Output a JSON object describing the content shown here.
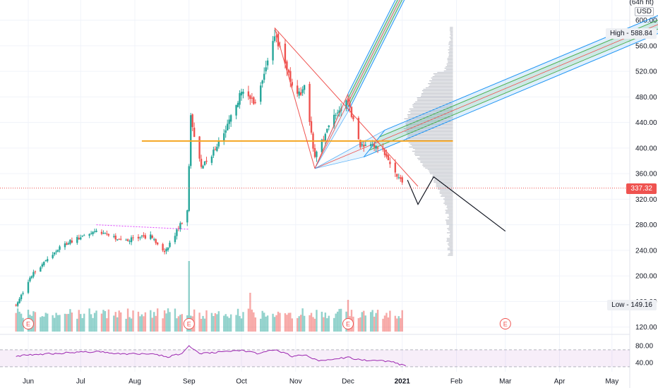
{
  "header": {
    "interval": "(64h ht)",
    "currency": "USD"
  },
  "price_tags": {
    "last": "337.32",
    "high": "High - 588.84",
    "low": "Low - 149.16"
  },
  "colors": {
    "up": "#26a69a",
    "down": "#ef5350",
    "hline": "#f5a623",
    "fork_fill": "#2196f3",
    "fork_mid": "#4caf50",
    "rsi": "#9c27b0"
  },
  "chart_data": {
    "type": "candlestick",
    "x_labels": [
      "Jun",
      "Jul",
      "Aug",
      "Sep",
      "Oct",
      "Nov",
      "Dec",
      "2021",
      "Feb",
      "Mar",
      "Apr",
      "May"
    ],
    "x_label_dates": [
      "2020-06-01",
      "2020-07-01",
      "2020-08-01",
      "2020-09-01",
      "2020-10-01",
      "2020-11-01",
      "2020-12-01",
      "2021-01-01",
      "2021-02-01",
      "2021-03-01",
      "2021-04-01",
      "2021-05-01"
    ],
    "price_axis": {
      "ticks": [
        600,
        560,
        520,
        480,
        440,
        400,
        360,
        320,
        280,
        240,
        200,
        160,
        120
      ],
      "tick_labels": [
        "600.00",
        "560.00",
        "520.00",
        "480.00",
        "440.00",
        "400.00",
        "360.00",
        "320.00",
        "280.00",
        "240.00",
        "200.00",
        "160.00",
        "120.00"
      ],
      "range": [
        113,
        626
      ]
    },
    "rsi_axis": {
      "ticks": [
        80,
        40
      ],
      "tick_labels": [
        "80.00",
        "40.00"
      ],
      "band": [
        30,
        70
      ],
      "range": [
        18,
        100
      ]
    },
    "last_price": 337.32,
    "high": 588.84,
    "low": 149.16,
    "earnings_markers": [
      "2020-06-01",
      "2020-09-01",
      "2020-12-01",
      "2021-03-01"
    ],
    "earnings_label": "E",
    "segments": [
      {
        "from": "2020-05-25",
        "to": "2020-06-04",
        "start": 155,
        "end": 205
      },
      {
        "from": "2020-06-04",
        "to": "2020-06-20",
        "start": 205,
        "end": 248
      },
      {
        "from": "2020-06-20",
        "to": "2020-07-10",
        "start": 248,
        "end": 270
      },
      {
        "from": "2020-07-10",
        "to": "2020-07-25",
        "start": 270,
        "end": 255
      },
      {
        "from": "2020-07-25",
        "to": "2020-08-10",
        "start": 255,
        "end": 262
      },
      {
        "from": "2020-08-10",
        "to": "2020-08-18",
        "start": 262,
        "end": 236
      },
      {
        "from": "2020-08-18",
        "to": "2020-08-31",
        "start": 236,
        "end": 300
      },
      {
        "from": "2020-08-31",
        "to": "2020-09-02",
        "start": 300,
        "end": 448
      },
      {
        "from": "2020-09-02",
        "to": "2020-09-08",
        "start": 448,
        "end": 368
      },
      {
        "from": "2020-09-08",
        "to": "2020-09-20",
        "start": 368,
        "end": 415
      },
      {
        "from": "2020-09-20",
        "to": "2020-10-01",
        "start": 415,
        "end": 488
      },
      {
        "from": "2020-10-01",
        "to": "2020-10-10",
        "start": 488,
        "end": 470
      },
      {
        "from": "2020-10-10",
        "to": "2020-10-20",
        "start": 470,
        "end": 580
      },
      {
        "from": "2020-10-20",
        "to": "2020-10-28",
        "start": 580,
        "end": 520
      },
      {
        "from": "2020-10-28",
        "to": "2020-11-01",
        "start": 520,
        "end": 475
      },
      {
        "from": "2020-11-01",
        "to": "2020-11-06",
        "start": 475,
        "end": 498
      },
      {
        "from": "2020-11-06",
        "to": "2020-11-12",
        "start": 498,
        "end": 385
      },
      {
        "from": "2020-11-12",
        "to": "2020-11-22",
        "start": 385,
        "end": 445
      },
      {
        "from": "2020-11-22",
        "to": "2020-12-01",
        "start": 445,
        "end": 472
      },
      {
        "from": "2020-12-01",
        "to": "2020-12-08",
        "start": 472,
        "end": 405
      },
      {
        "from": "2020-12-08",
        "to": "2020-12-20",
        "start": 405,
        "end": 398
      },
      {
        "from": "2020-12-20",
        "to": "2020-12-28",
        "start": 398,
        "end": 360
      },
      {
        "from": "2020-12-28",
        "to": "2021-01-03",
        "start": 360,
        "end": 337
      }
    ],
    "volume_spikes": {
      "2020-09-01": 1.0,
      "2020-10-06": 0.55,
      "2020-11-21": 0.35,
      "2020-12-01": 0.45
    },
    "rsi_points": [
      {
        "date": "2020-05-25",
        "value": 55
      },
      {
        "date": "2020-06-08",
        "value": 60
      },
      {
        "date": "2020-06-25",
        "value": 63
      },
      {
        "date": "2020-07-10",
        "value": 66
      },
      {
        "date": "2020-07-25",
        "value": 60
      },
      {
        "date": "2020-08-10",
        "value": 61
      },
      {
        "date": "2020-08-20",
        "value": 53
      },
      {
        "date": "2020-08-28",
        "value": 62
      },
      {
        "date": "2020-09-01",
        "value": 80
      },
      {
        "date": "2020-09-07",
        "value": 62
      },
      {
        "date": "2020-09-20",
        "value": 65
      },
      {
        "date": "2020-10-01",
        "value": 68
      },
      {
        "date": "2020-10-10",
        "value": 62
      },
      {
        "date": "2020-10-20",
        "value": 70
      },
      {
        "date": "2020-10-30",
        "value": 55
      },
      {
        "date": "2020-11-06",
        "value": 58
      },
      {
        "date": "2020-11-13",
        "value": 45
      },
      {
        "date": "2020-11-22",
        "value": 48
      },
      {
        "date": "2020-12-01",
        "value": 52
      },
      {
        "date": "2020-12-08",
        "value": 46
      },
      {
        "date": "2020-12-20",
        "value": 45
      },
      {
        "date": "2020-12-27",
        "value": 40
      },
      {
        "date": "2021-01-03",
        "value": 32
      }
    ],
    "horizontal_line": {
      "price": 411,
      "from": "2020-08-05",
      "to": "2021-01-30"
    },
    "dotted_trendline": {
      "from": {
        "date": "2020-07-10",
        "price": 280
      },
      "to": {
        "date": "2020-09-01",
        "price": 273
      }
    },
    "pitchforks": [
      {
        "a": {
          "date": "2020-11-12",
          "price": 368
        },
        "b": {
          "date": "2020-12-01",
          "price": 485
        },
        "c": {
          "date": "2020-12-01",
          "price": 457
        },
        "extend_to": "2021-05-31"
      },
      {
        "a": {
          "date": "2020-11-12",
          "price": 368
        },
        "b": {
          "date": "2020-12-22",
          "price": 428
        },
        "c": {
          "date": "2020-12-10",
          "price": 386
        },
        "extend_to": "2021-05-31"
      }
    ],
    "pivot_lines": [
      {
        "from": {
          "date": "2020-10-20",
          "price": 588
        },
        "to": {
          "date": "2020-11-12",
          "price": 368
        }
      },
      {
        "from": {
          "date": "2020-10-20",
          "price": 588
        },
        "to": {
          "date": "2021-01-10",
          "price": 340
        }
      },
      {
        "from": {
          "date": "2020-11-12",
          "price": 368
        },
        "to": {
          "date": "2020-12-01",
          "price": 485
        }
      }
    ],
    "projection": [
      {
        "date": "2021-01-04",
        "price": 350
      },
      {
        "date": "2021-01-10",
        "price": 312
      },
      {
        "date": "2021-01-19",
        "price": 355
      },
      {
        "date": "2021-03-01",
        "price": 270
      }
    ],
    "volume_profile": {
      "low": 232,
      "high": 589,
      "peak_price": 432
    }
  }
}
